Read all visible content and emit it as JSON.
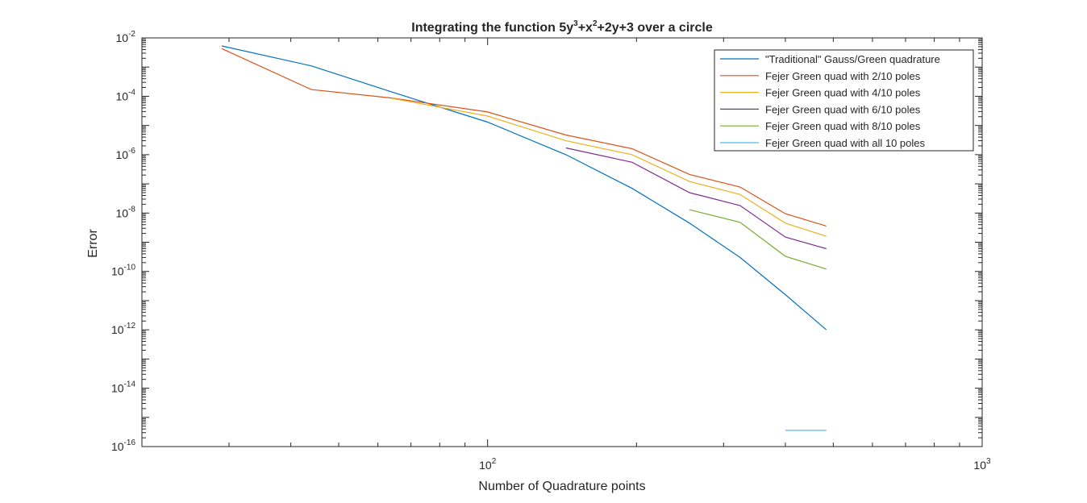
{
  "chart_data": {
    "type": "line",
    "title": "Integrating the function 5y³+x²+2y+3 over a circle",
    "title_parts": [
      {
        "text": "Integrating the function 5y",
        "sup": false
      },
      {
        "text": "3",
        "sup": true
      },
      {
        "text": "+x",
        "sup": false
      },
      {
        "text": "2",
        "sup": true
      },
      {
        "text": "+2y+3 over a circle",
        "sup": false
      }
    ],
    "xlabel": "Number of Quadrature points",
    "ylabel": "Error",
    "xscale": "log",
    "yscale": "log",
    "xlim": [
      20,
      1000
    ],
    "ylim": [
      1e-16,
      0.01
    ],
    "x_ticks": [
      {
        "value": 100,
        "base": "10",
        "exp": "2"
      },
      {
        "value": 1000,
        "base": "10",
        "exp": "3"
      }
    ],
    "y_ticks": [
      {
        "value": 0.01,
        "base": "10",
        "exp": "-2"
      },
      {
        "value": 0.0001,
        "base": "10",
        "exp": "-4"
      },
      {
        "value": 1e-06,
        "base": "10",
        "exp": "-6"
      },
      {
        "value": 1e-08,
        "base": "10",
        "exp": "-8"
      },
      {
        "value": 1e-10,
        "base": "10",
        "exp": "-10"
      },
      {
        "value": 1e-12,
        "base": "10",
        "exp": "-12"
      },
      {
        "value": 1e-14,
        "base": "10",
        "exp": "-14"
      },
      {
        "value": 1e-16,
        "base": "10",
        "exp": "-16"
      }
    ],
    "grid": false,
    "legend_position": "top-right",
    "series": [
      {
        "name": "\"Traditional\" Gauss/Green quadrature",
        "color": "#0072BD",
        "x": [
          29,
          44,
          64,
          100,
          144,
          196,
          256,
          324,
          400,
          484
        ],
        "y": [
          0.0053,
          0.0011,
          0.00014,
          1.3e-05,
          1e-06,
          7e-08,
          4.5e-09,
          3e-10,
          1.6e-11,
          1e-12
        ]
      },
      {
        "name": "Fejer Green quad with 2/10 poles",
        "color": "#D95319",
        "x": [
          29,
          44,
          64,
          100,
          144,
          196,
          256,
          324,
          400,
          484
        ],
        "y": [
          0.0043,
          0.00017,
          8.7e-05,
          2.9e-05,
          4.7e-06,
          1.6e-06,
          2.1e-07,
          7.8e-08,
          9.5e-09,
          3.6e-09
        ]
      },
      {
        "name": "Fejer Green quad with 4/10 poles",
        "color": "#EDB120",
        "x": [
          64,
          100,
          144,
          196,
          256,
          324,
          400,
          484
        ],
        "y": [
          8.5e-05,
          2.1e-05,
          3e-06,
          1e-06,
          1.2e-07,
          4.3e-08,
          4.5e-09,
          1.6e-09
        ]
      },
      {
        "name": "Fejer Green quad with 6/10 poles",
        "color": "#7E2F8E",
        "x": [
          144,
          196,
          256,
          324,
          400,
          484
        ],
        "y": [
          1.7e-06,
          5.5e-07,
          5e-08,
          1.8e-08,
          1.5e-09,
          6e-10
        ]
      },
      {
        "name": "Fejer Green quad with 8/10 poles",
        "color": "#77AC30",
        "x": [
          256,
          324,
          400,
          484
        ],
        "y": [
          1.3e-08,
          4.8e-09,
          3.3e-10,
          1.2e-10
        ]
      },
      {
        "name": "Fejer Green quad with all 10 poles",
        "color": "#4DBEEE",
        "x": [
          400,
          484
        ],
        "y": [
          3.6e-16,
          3.6e-16
        ]
      }
    ]
  }
}
